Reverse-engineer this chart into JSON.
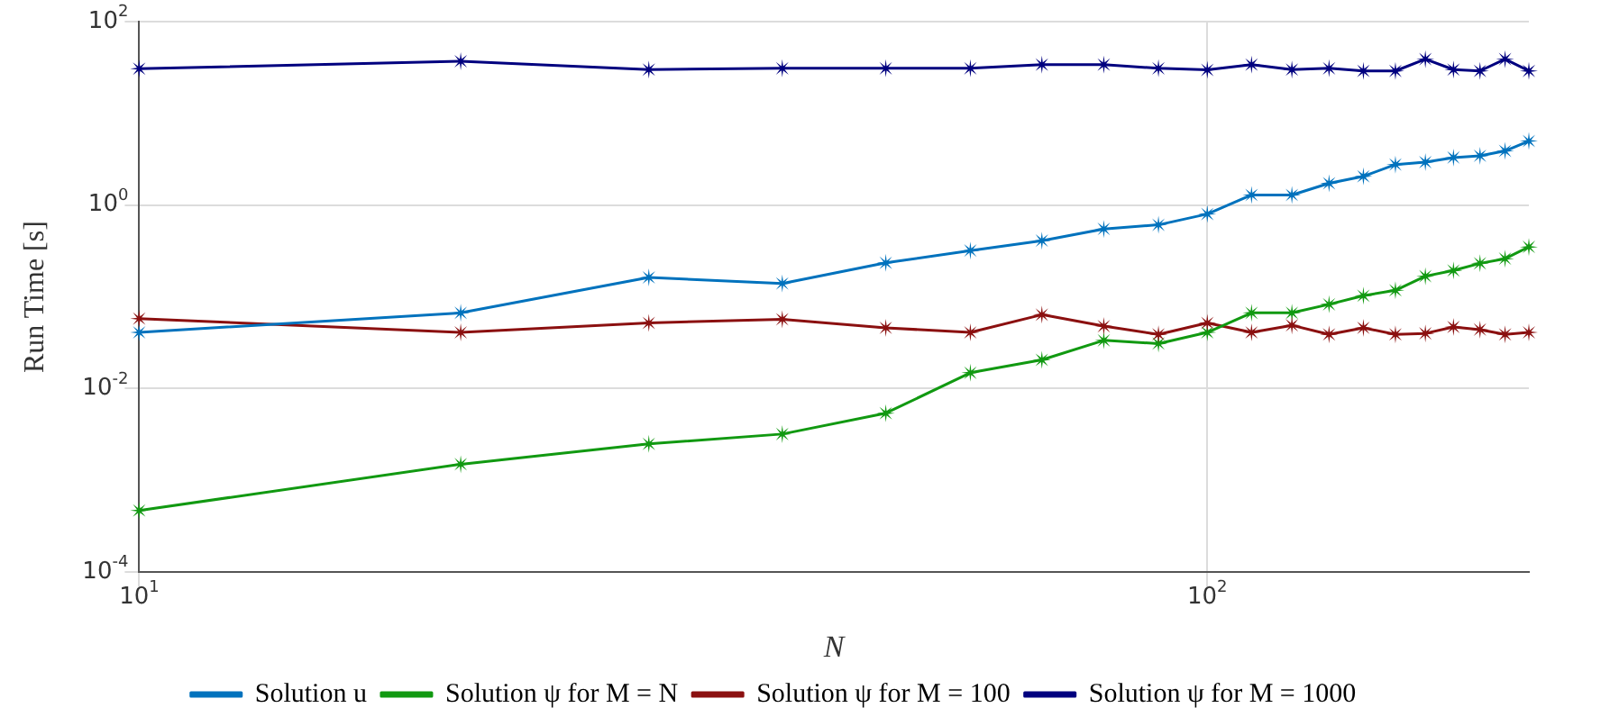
{
  "chart_data": {
    "type": "line",
    "xlabel": "N",
    "ylabel": "Run Time [s]",
    "log": "xy",
    "grid": true,
    "legend": "bottom",
    "marker": "star",
    "line_style": "solid",
    "xlim": [
      10,
      200
    ],
    "xticks": [
      {
        "value": 10,
        "label": "10$^{1}$"
      },
      {
        "value": 100,
        "label": "10$^{2}$"
      }
    ],
    "ylim": [
      0.0001,
      100
    ],
    "yticks": [
      {
        "value": 0.0001,
        "label": "10$^{-4}$"
      },
      {
        "value": 0.01,
        "label": "10$^{-2}$"
      },
      {
        "value": 1,
        "label": "10$^{0}$"
      },
      {
        "value": 100,
        "label": "10$^{2}$"
      }
    ],
    "x": [
      10,
      20,
      30,
      40,
      50,
      60,
      70,
      80,
      90,
      100,
      110,
      120,
      130,
      140,
      150,
      160,
      170,
      180,
      190,
      200
    ],
    "series": [
      {
        "name": "Solution u",
        "color": "#0072bd",
        "values": [
          0.041,
          0.067,
          0.163,
          0.14,
          0.235,
          0.32,
          0.41,
          0.55,
          0.61,
          0.8,
          1.29,
          1.29,
          1.73,
          2.06,
          2.77,
          2.94,
          3.3,
          3.45,
          3.9,
          5.0
        ]
      },
      {
        "name": "Solution ψ for M = N",
        "color": "#119911",
        "values": [
          0.00047,
          0.0015,
          0.0025,
          0.0032,
          0.0054,
          0.0149,
          0.0206,
          0.0336,
          0.031,
          0.041,
          0.067,
          0.067,
          0.083,
          0.103,
          0.118,
          0.168,
          0.194,
          0.232,
          0.261,
          0.35
        ]
      },
      {
        "name": "Solution ψ for M = 100",
        "color": "#8b1010",
        "values": [
          0.058,
          0.041,
          0.052,
          0.057,
          0.046,
          0.041,
          0.064,
          0.048,
          0.039,
          0.052,
          0.041,
          0.049,
          0.039,
          0.046,
          0.039,
          0.04,
          0.047,
          0.044,
          0.039,
          0.041
        ]
      },
      {
        "name": "Solution ψ for M = 1000",
        "color": "#00007f",
        "values": [
          30.7,
          37,
          30,
          31,
          31,
          31,
          34,
          34,
          31,
          29.8,
          34,
          30,
          31,
          29,
          29,
          39,
          30,
          29,
          39,
          29
        ]
      }
    ]
  }
}
